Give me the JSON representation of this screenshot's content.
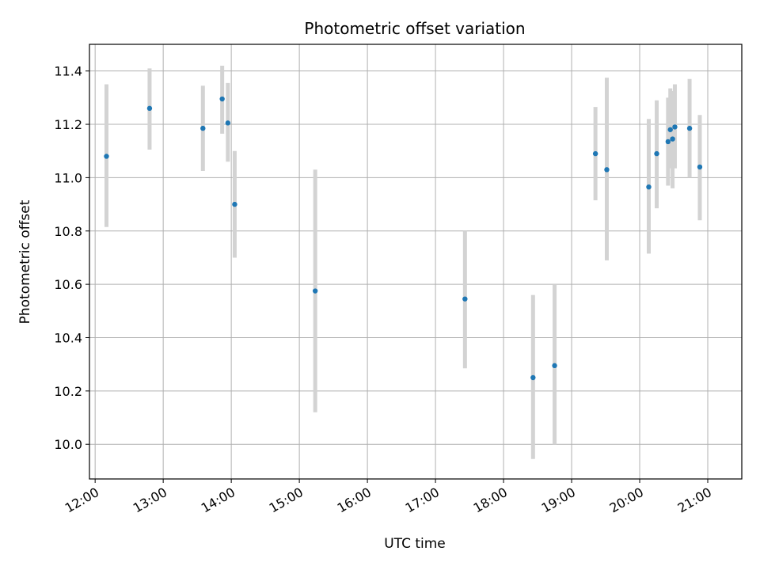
{
  "chart_data": {
    "type": "scatter",
    "title": "Photometric offset variation",
    "xlabel": "UTC time",
    "ylabel": "Photometric offset",
    "x_unit": "UTC time (HH:MM)",
    "xlim": [
      "11:55",
      "21:30"
    ],
    "ylim": [
      9.87,
      11.5
    ],
    "xticks": [
      "12:00",
      "13:00",
      "14:00",
      "15:00",
      "16:00",
      "17:00",
      "18:00",
      "19:00",
      "20:00",
      "21:00"
    ],
    "yticks": [
      10.0,
      10.2,
      10.4,
      10.6,
      10.8,
      11.0,
      11.2,
      11.4
    ],
    "ytick_labels": [
      "10.0",
      "10.2",
      "10.4",
      "10.6",
      "10.8",
      "11.0",
      "11.2",
      "11.4"
    ],
    "grid": true,
    "colors": {
      "point": "#1f77b4",
      "errorbar": "#d3d3d3",
      "grid": "#b0b0b0"
    },
    "points": [
      {
        "x": "12:10",
        "y": 11.08,
        "ylow": 10.815,
        "yhigh": 11.35
      },
      {
        "x": "12:48",
        "y": 11.26,
        "ylow": 11.105,
        "yhigh": 11.41
      },
      {
        "x": "13:35",
        "y": 11.185,
        "ylow": 11.025,
        "yhigh": 11.345
      },
      {
        "x": "13:52",
        "y": 11.295,
        "ylow": 11.165,
        "yhigh": 11.42
      },
      {
        "x": "13:57",
        "y": 11.205,
        "ylow": 11.06,
        "yhigh": 11.355
      },
      {
        "x": "14:03",
        "y": 10.9,
        "ylow": 10.7,
        "yhigh": 11.1
      },
      {
        "x": "15:14",
        "y": 10.575,
        "ylow": 10.12,
        "yhigh": 11.03
      },
      {
        "x": "17:26",
        "y": 10.545,
        "ylow": 10.285,
        "yhigh": 10.8
      },
      {
        "x": "18:26",
        "y": 10.25,
        "ylow": 9.945,
        "yhigh": 10.56
      },
      {
        "x": "18:45",
        "y": 10.295,
        "ylow": 10.0,
        "yhigh": 10.6
      },
      {
        "x": "19:21",
        "y": 11.09,
        "ylow": 10.915,
        "yhigh": 11.265
      },
      {
        "x": "19:31",
        "y": 11.03,
        "ylow": 10.69,
        "yhigh": 11.375
      },
      {
        "x": "20:08",
        "y": 10.965,
        "ylow": 10.715,
        "yhigh": 11.22
      },
      {
        "x": "20:15",
        "y": 11.09,
        "ylow": 10.885,
        "yhigh": 11.29
      },
      {
        "x": "20:25",
        "y": 11.135,
        "ylow": 10.97,
        "yhigh": 11.3
      },
      {
        "x": "20:27",
        "y": 11.18,
        "ylow": 11.035,
        "yhigh": 11.335
      },
      {
        "x": "20:29",
        "y": 11.145,
        "ylow": 10.96,
        "yhigh": 11.325
      },
      {
        "x": "20:31",
        "y": 11.19,
        "ylow": 11.035,
        "yhigh": 11.35
      },
      {
        "x": "20:44",
        "y": 11.185,
        "ylow": 11.0,
        "yhigh": 11.37
      },
      {
        "x": "20:53",
        "y": 11.04,
        "ylow": 10.84,
        "yhigh": 11.235
      }
    ]
  }
}
